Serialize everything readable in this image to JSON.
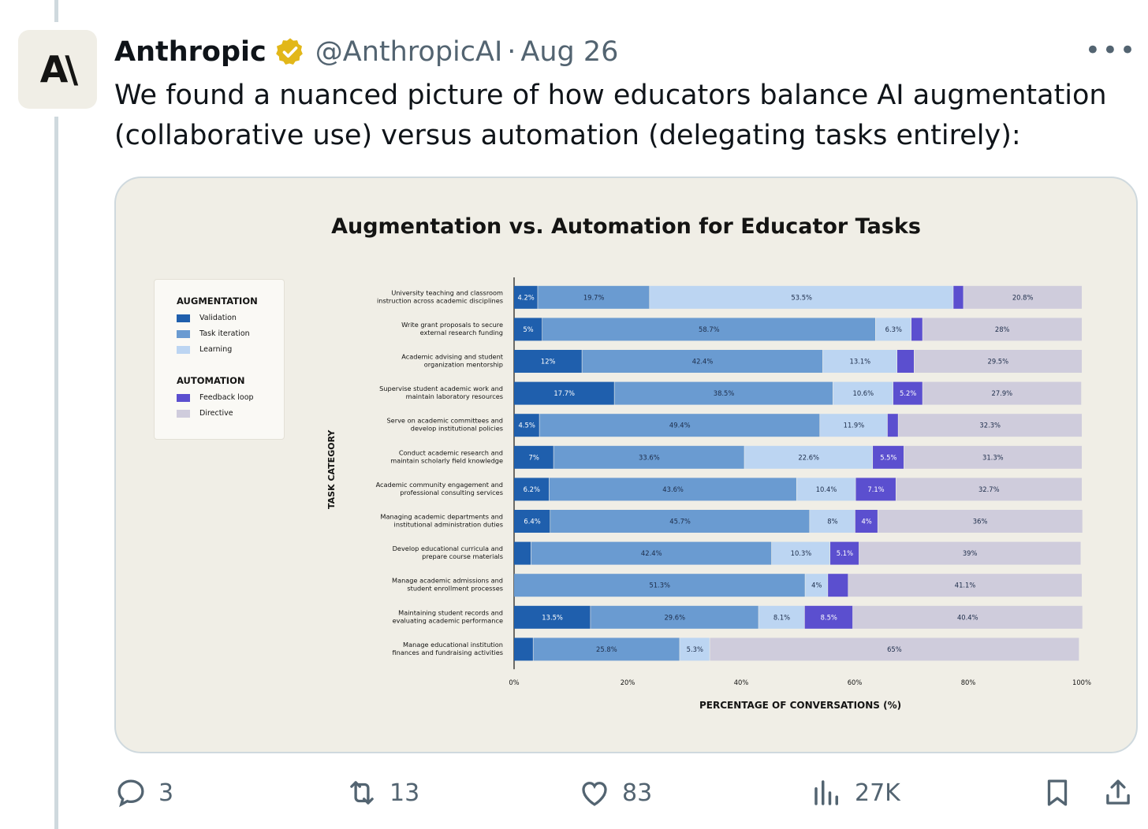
{
  "tweet": {
    "author_name": "Anthropic",
    "handle": "@AnthropicAI",
    "separator": "·",
    "date": "Aug 26",
    "avatar_text": "A\\",
    "text_line1": "We found a nuanced picture of how educators balance AI augmentation",
    "text_line2": "(collaborative use) versus automation (delegating tasks entirely):"
  },
  "actions": {
    "replies": "3",
    "retweets": "13",
    "likes": "83",
    "views": "27K"
  },
  "colors": {
    "validation": "#1f5fad",
    "task_iteration": "#6a9bd1",
    "learning": "#bcd5f2",
    "feedback_loop": "#5b4fcf",
    "directive": "#cfccdc"
  },
  "legend": {
    "augmentation_title": "AUGMENTATION",
    "automation_title": "AUTOMATION",
    "items": [
      "Validation",
      "Task iteration",
      "Learning",
      "Feedback loop",
      "Directive"
    ]
  },
  "chart_data": {
    "type": "bar",
    "orientation": "horizontal-stacked",
    "title": "Augmentation vs. Automation for Educator Tasks",
    "xlabel": "PERCENTAGE OF CONVERSATIONS (%)",
    "ylabel": "TASK CATEGORY",
    "xlim": [
      0,
      100
    ],
    "xticks": [
      "0%",
      "20%",
      "40%",
      "60%",
      "80%",
      "100%"
    ],
    "categories": [
      "University teaching and classroom|instruction across academic disciplines",
      "Write grant proposals to secure|external research funding",
      "Academic advising and student|organization mentorship",
      "Supervise student academic work and|maintain laboratory resources",
      "Serve on academic committees and|develop institutional policies",
      "Conduct academic research and|maintain scholarly field knowledge",
      "Academic community engagement and|professional consulting services",
      "Managing academic departments and|institutional administration duties",
      "Develop educational curricula and|prepare course materials",
      "Manage academic admissions and|student enrollment processes",
      "Maintaining student records and|evaluating academic performance",
      "Manage educational institution|finances and fundraising activities"
    ],
    "series": [
      {
        "name": "Validation",
        "values": [
          4.2,
          5,
          12,
          17.7,
          4.5,
          7,
          6.2,
          6.4,
          3,
          0,
          13.5,
          3.4
        ],
        "labels": [
          "4.2%",
          "5%",
          "12%",
          "17.7%",
          "4.5%",
          "7%",
          "6.2%",
          "6.4%",
          "",
          "",
          "13.5%",
          ""
        ]
      },
      {
        "name": "Task iteration",
        "values": [
          19.7,
          58.7,
          42.4,
          38.5,
          49.4,
          33.6,
          43.6,
          45.7,
          42.4,
          51.3,
          29.6,
          25.8
        ],
        "labels": [
          "19.7%",
          "58.7%",
          "42.4%",
          "38.5%",
          "49.4%",
          "33.6%",
          "43.6%",
          "45.7%",
          "42.4%",
          "51.3%",
          "29.6%",
          "25.8%"
        ]
      },
      {
        "name": "Learning",
        "values": [
          53.5,
          6.3,
          13.1,
          10.6,
          11.9,
          22.6,
          10.4,
          8,
          10.3,
          4,
          8.1,
          5.3
        ],
        "labels": [
          "53.5%",
          "6.3%",
          "13.1%",
          "10.6%",
          "11.9%",
          "22.6%",
          "10.4%",
          "8%",
          "10.3%",
          "4%",
          "8.1%",
          "5.3%"
        ]
      },
      {
        "name": "Feedback loop",
        "values": [
          1.8,
          2,
          3,
          5.2,
          1.9,
          5.5,
          7.1,
          4,
          5.1,
          3.6,
          8.5,
          0
        ],
        "labels": [
          "",
          "",
          "",
          "5.2%",
          "",
          "5.5%",
          "7.1%",
          "4%",
          "5.1%",
          "",
          "8.5%",
          ""
        ]
      },
      {
        "name": "Directive",
        "values": [
          20.8,
          28,
          29.5,
          27.9,
          32.3,
          31.3,
          32.7,
          36,
          39,
          41.1,
          40.4,
          65
        ],
        "labels": [
          "20.8%",
          "28%",
          "29.5%",
          "27.9%",
          "32.3%",
          "31.3%",
          "32.7%",
          "36%",
          "39%",
          "41.1%",
          "40.4%",
          "65%"
        ]
      }
    ],
    "legend_position": "left",
    "grid": false
  }
}
